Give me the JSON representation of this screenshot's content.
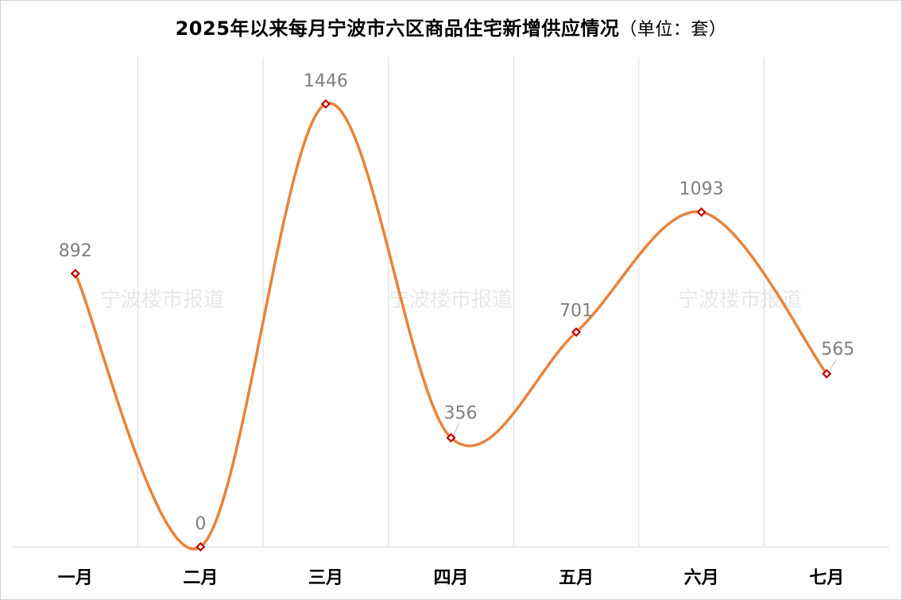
{
  "title": {
    "main": "2025年以来每月宁波市六区商品住宅新增供应情况",
    "unit": "（单位：套）"
  },
  "watermark": "宁波楼市报道",
  "colors": {
    "line": "#e8833a",
    "marker": "#c00000",
    "grid": "#d9d9d9",
    "value_label": "#7f7f7f"
  },
  "chart_data": {
    "type": "line",
    "title": "2025年以来每月宁波市六区商品住宅新增供应情况（单位：套）",
    "categories": [
      "一月",
      "二月",
      "三月",
      "四月",
      "五月",
      "六月",
      "七月"
    ],
    "values": [
      892,
      0,
      1446,
      356,
      701,
      1093,
      565
    ],
    "ylim": [
      0,
      1446
    ],
    "smooth": true,
    "markers": "diamond",
    "data_labels": true,
    "grid": "vertical"
  }
}
